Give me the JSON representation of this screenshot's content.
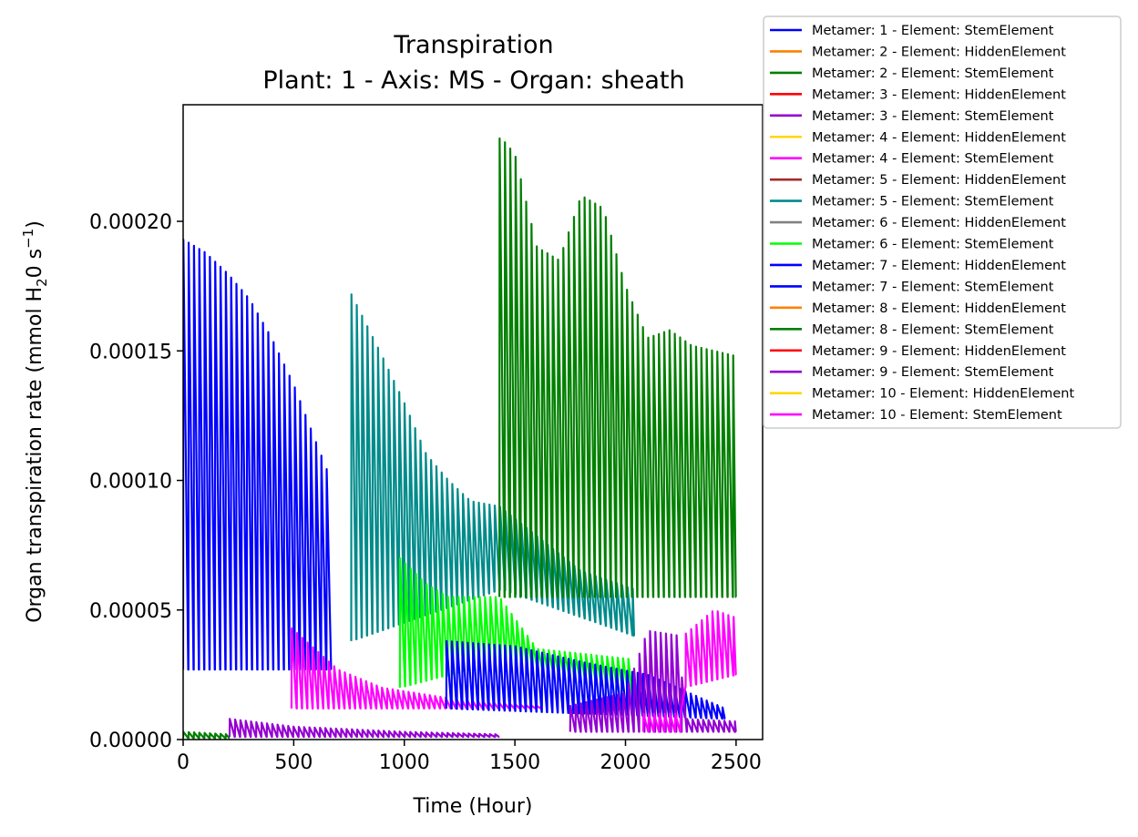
{
  "chart_data": {
    "type": "line",
    "title": "Transpiration",
    "subtitle": "Plant: 1 - Axis: MS - Organ: sheath",
    "xlabel": "Time (Hour)",
    "ylabel": {
      "prefix": "Organ transpiration rate (mmol H",
      "sub": "2",
      "mid": "0 s",
      "sup": "−1",
      "suffix": ")"
    },
    "xlim": [
      0,
      2620
    ],
    "ylim": [
      0,
      0.000245
    ],
    "x_ticks": [
      0,
      500,
      1000,
      1500,
      2000,
      2500
    ],
    "x_tick_labels": [
      "0",
      "500",
      "1000",
      "1500",
      "2000",
      "2500"
    ],
    "y_ticks": [
      0,
      5e-05,
      0.0001,
      0.00015,
      0.0002
    ],
    "y_tick_labels": [
      "0.00000",
      "0.00005",
      "0.00010",
      "0.00015",
      "0.00020"
    ],
    "grid": false,
    "legend_position": "outside-top-right",
    "cycle_period_hours": 24,
    "series": [
      {
        "name": "Metamer: 1 - Element: StemElement",
        "color": "#0000ff",
        "start": 0,
        "end": 670,
        "low": [
          [
            0,
            2.7e-05
          ],
          [
            660,
            2.7e-05
          ]
        ],
        "high": [
          [
            0,
            0.000193
          ],
          [
            100,
            0.000188
          ],
          [
            200,
            0.00018
          ],
          [
            300,
            0.00017
          ],
          [
            400,
            0.000155
          ],
          [
            500,
            0.000137
          ],
          [
            600,
            0.000115
          ],
          [
            660,
            0.000102
          ]
        ]
      },
      {
        "name": "Metamer: 2 - Element: HiddenElement",
        "color": "#ff8000",
        "start": null,
        "end": null,
        "low": [],
        "high": []
      },
      {
        "name": "Metamer: 2 - Element: StemElement",
        "color": "#008000",
        "start": 0,
        "end": 210,
        "low": [
          [
            0,
            5e-07
          ],
          [
            210,
            5e-07
          ]
        ],
        "high": [
          [
            0,
            3e-06
          ],
          [
            210,
            2e-06
          ]
        ]
      },
      {
        "name": "Metamer: 3 - Element: HiddenElement",
        "color": "#ff0000",
        "start": null,
        "end": null,
        "low": [],
        "high": []
      },
      {
        "name": "Metamer: 3 - Element: StemElement",
        "color": "#9400d3",
        "start": 210,
        "end": 1430,
        "low": [
          [
            210,
            1e-06
          ],
          [
            1430,
            1e-06
          ]
        ],
        "high": [
          [
            210,
            8e-06
          ],
          [
            500,
            5e-06
          ],
          [
            1000,
            3e-06
          ],
          [
            1430,
            2e-06
          ]
        ]
      },
      {
        "name": "Metamer: 4 - Element: HiddenElement",
        "color": "#ffd700",
        "start": null,
        "end": null,
        "low": [],
        "high": []
      },
      {
        "name": "Metamer: 4 - Element: StemElement",
        "color": "#ff00ff",
        "start": 490,
        "end": 1620,
        "low": [
          [
            490,
            1.2e-05
          ],
          [
            1620,
            1.2e-05
          ]
        ],
        "high": [
          [
            490,
            4.3e-05
          ],
          [
            700,
            2.7e-05
          ],
          [
            900,
            2e-05
          ],
          [
            1200,
            1.6e-05
          ],
          [
            1620,
            1.3e-05
          ]
        ]
      },
      {
        "name": "Metamer: 5 - Element: HiddenElement",
        "color": "#a52a2a",
        "start": null,
        "end": null,
        "low": [],
        "high": []
      },
      {
        "name": "Metamer: 5 - Element: StemElement",
        "color": "#008b8b",
        "start": 760,
        "end": 2040,
        "low": [
          [
            760,
            3.8e-05
          ],
          [
            1440,
            5.8e-05
          ],
          [
            2040,
            4e-05
          ]
        ],
        "high": [
          [
            760,
            0.000172
          ],
          [
            900,
            0.000148
          ],
          [
            1000,
            0.00013
          ],
          [
            1100,
            0.00011
          ],
          [
            1200,
            0.0001
          ],
          [
            1300,
            9.2e-05
          ],
          [
            1430,
            9e-05
          ],
          [
            1800,
            6.5e-05
          ],
          [
            2040,
            5.8e-05
          ]
        ]
      },
      {
        "name": "Metamer: 6 - Element: HiddenElement",
        "color": "#808080",
        "start": null,
        "end": null,
        "low": [],
        "high": []
      },
      {
        "name": "Metamer: 6 - Element: StemElement",
        "color": "#00ff00",
        "start": 980,
        "end": 2030,
        "low": [
          [
            980,
            2e-05
          ],
          [
            1430,
            3e-05
          ],
          [
            2030,
            1.8e-05
          ]
        ],
        "high": [
          [
            980,
            7e-05
          ],
          [
            1100,
            6e-05
          ],
          [
            1200,
            5.5e-05
          ],
          [
            1430,
            5.5e-05
          ],
          [
            1600,
            3.5e-05
          ],
          [
            2030,
            3.1e-05
          ]
        ]
      },
      {
        "name": "Metamer: 7 - Element: HiddenElement",
        "color": "#0000ff",
        "start": null,
        "end": null,
        "low": [],
        "high": []
      },
      {
        "name": "Metamer: 7 - Element: StemElement",
        "color": "#0000ff",
        "start": 1190,
        "end": 2450,
        "low": [
          [
            1190,
            1.2e-05
          ],
          [
            2450,
            8e-06
          ]
        ],
        "high": [
          [
            1190,
            3.8e-05
          ],
          [
            1500,
            3.6e-05
          ],
          [
            1800,
            3e-05
          ],
          [
            2100,
            2.5e-05
          ],
          [
            2450,
            1.2e-05
          ]
        ]
      },
      {
        "name": "Metamer: 8 - Element: HiddenElement",
        "color": "#ff8000",
        "start": null,
        "end": null,
        "low": [],
        "high": []
      },
      {
        "name": "Metamer: 8 - Element: StemElement",
        "color": "#008000",
        "start": 1430,
        "end": 2500,
        "low": [
          [
            1430,
            5.5e-05
          ],
          [
            2500,
            5.5e-05
          ]
        ],
        "high": [
          [
            1440,
            0.000232
          ],
          [
            1500,
            0.000226
          ],
          [
            1600,
            0.00019
          ],
          [
            1700,
            0.000185
          ],
          [
            1800,
            0.00021
          ],
          [
            1900,
            0.000205
          ],
          [
            2000,
            0.000175
          ],
          [
            2100,
            0.000155
          ],
          [
            2200,
            0.000158
          ],
          [
            2300,
            0.000152
          ],
          [
            2500,
            0.000148
          ]
        ]
      },
      {
        "name": "Metamer: 9 - Element: HiddenElement",
        "color": "#ff0000",
        "start": null,
        "end": null,
        "low": [],
        "high": []
      },
      {
        "name": "Metamer: 9 - Element: StemElement",
        "color": "#9400d3",
        "start": 1750,
        "end": 2500,
        "low": [
          [
            1750,
            3e-06
          ],
          [
            2500,
            3e-06
          ]
        ],
        "high": [
          [
            1750,
            1.3e-05
          ],
          [
            2000,
            1.8e-05
          ],
          [
            2100,
            4.2e-05
          ],
          [
            2250,
            4e-05
          ],
          [
            2260,
            8e-06
          ],
          [
            2500,
            7e-06
          ]
        ]
      },
      {
        "name": "Metamer: 10 - Element: HiddenElement",
        "color": "#ffd700",
        "start": null,
        "end": null,
        "low": [],
        "high": []
      },
      {
        "name": "Metamer: 10 - Element: StemElement",
        "color": "#ff00ff",
        "start": 2080,
        "end": 2500,
        "low": [
          [
            2080,
            3e-06
          ],
          [
            2250,
            3e-06
          ],
          [
            2260,
            2e-05
          ],
          [
            2500,
            2.5e-05
          ]
        ],
        "high": [
          [
            2080,
            1e-05
          ],
          [
            2250,
            1e-05
          ],
          [
            2260,
            4e-05
          ],
          [
            2400,
            5e-05
          ],
          [
            2500,
            4.7e-05
          ]
        ]
      }
    ]
  }
}
